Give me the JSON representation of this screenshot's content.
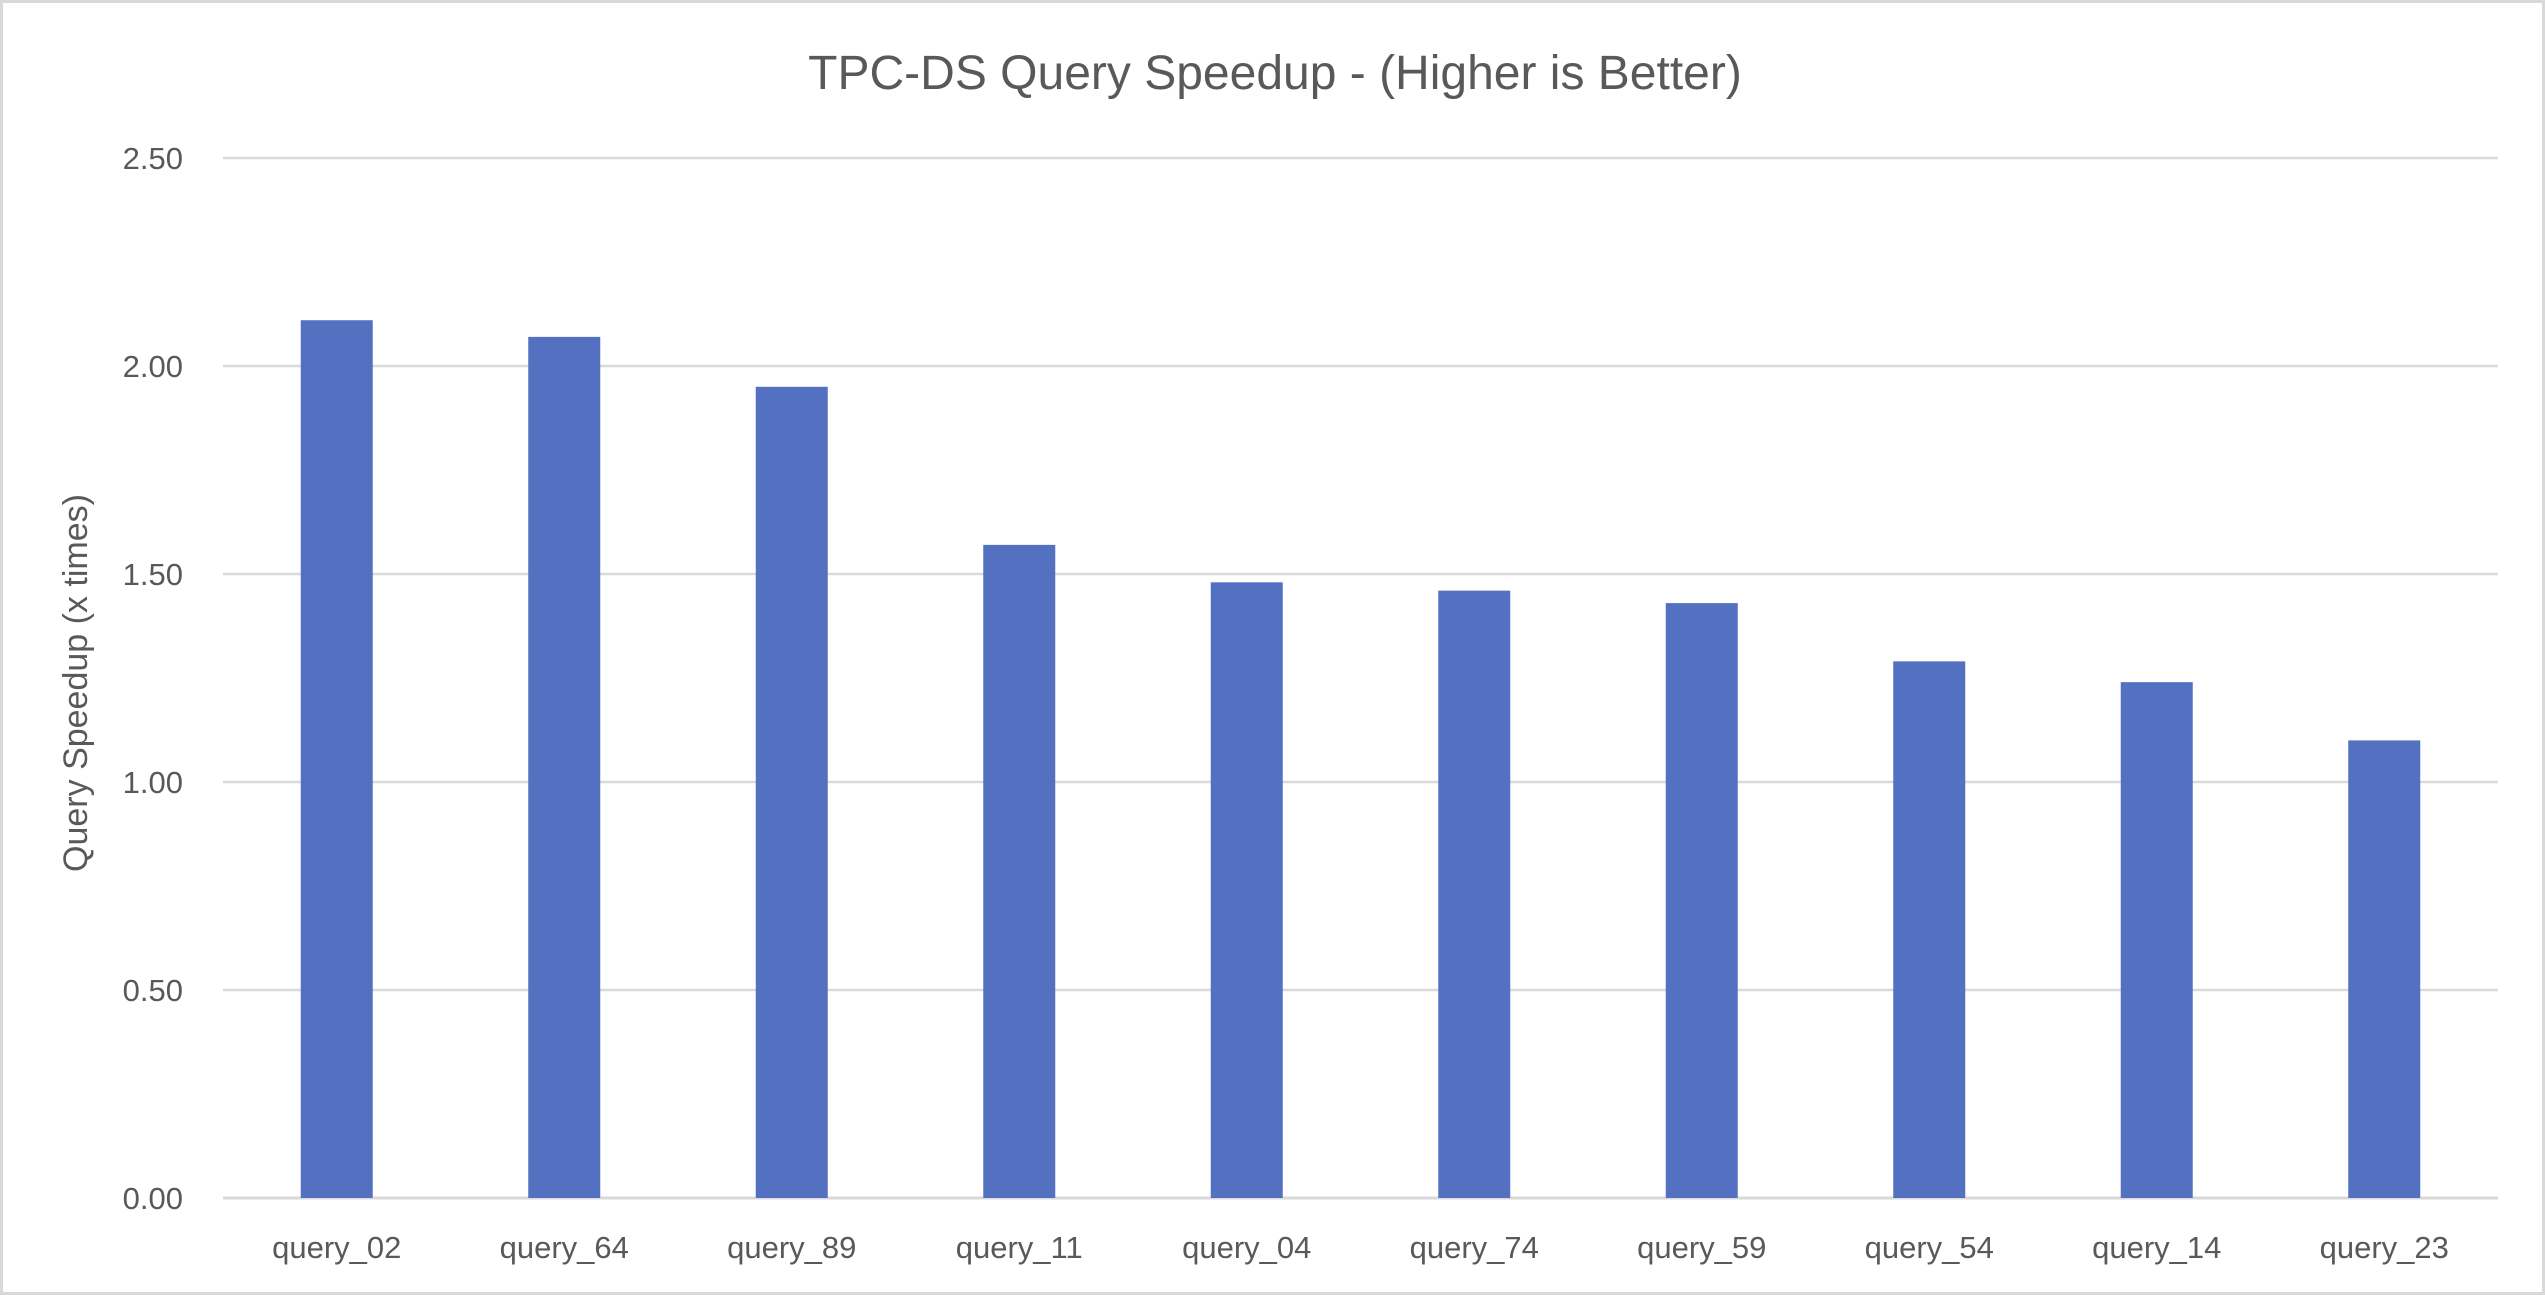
{
  "chart_data": {
    "type": "bar",
    "title": "TPC-DS Query Speedup - (Higher is Better)",
    "xlabel": "",
    "ylabel": "Query Speedup (x times)",
    "categories": [
      "query_02",
      "query_64",
      "query_89",
      "query_11",
      "query_04",
      "query_74",
      "query_59",
      "query_54",
      "query_14",
      "query_23"
    ],
    "values": [
      2.11,
      2.07,
      1.95,
      1.57,
      1.48,
      1.46,
      1.43,
      1.29,
      1.24,
      1.1
    ],
    "ylim": [
      0,
      2.5
    ],
    "yticks": [
      "0.00",
      "0.50",
      "1.00",
      "1.50",
      "2.00",
      "2.50"
    ],
    "grid": true,
    "legend": "none",
    "bar_color": "#5470c1"
  }
}
